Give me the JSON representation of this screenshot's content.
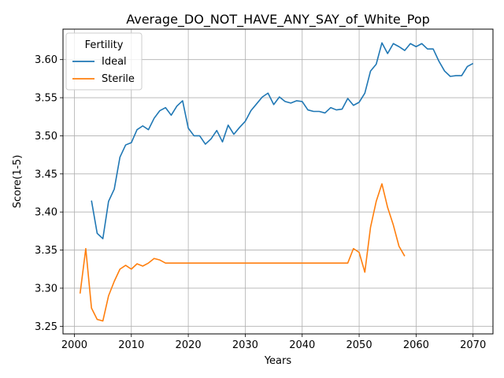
{
  "chart_data": {
    "type": "line",
    "title": "Average_DO_NOT_HAVE_ANY_SAY_of_White_Pop",
    "xlabel": "Years",
    "ylabel": "Score(1-5)",
    "xlim": [
      1998,
      2073.5
    ],
    "ylim": [
      3.24,
      3.64
    ],
    "xticks": [
      2000,
      2010,
      2020,
      2030,
      2040,
      2050,
      2060,
      2070
    ],
    "yticks": [
      3.25,
      3.3,
      3.35,
      3.4,
      3.45,
      3.5,
      3.55,
      3.6
    ],
    "yticklabels": [
      "3.25",
      "3.30",
      "3.35",
      "3.40",
      "3.45",
      "3.50",
      "3.55",
      "3.60"
    ],
    "grid": true,
    "legend": {
      "title": "Fertility",
      "placement": "upper-left"
    },
    "series": [
      {
        "name": "Ideal",
        "color": "#1f77b4",
        "x": [
          2003,
          2004,
          2005,
          2006,
          2007,
          2008,
          2009,
          2010,
          2011,
          2012,
          2013,
          2014,
          2015,
          2016,
          2017,
          2018,
          2019,
          2020,
          2021,
          2022,
          2023,
          2024,
          2025,
          2026,
          2027,
          2028,
          2029,
          2030,
          2031,
          2032,
          2033,
          2034,
          2035,
          2036,
          2037,
          2038,
          2039,
          2040,
          2041,
          2042,
          2043,
          2044,
          2045,
          2046,
          2047,
          2048,
          2049,
          2050,
          2051,
          2052,
          2053,
          2054,
          2055,
          2056,
          2057,
          2058,
          2059,
          2060,
          2061,
          2062,
          2063,
          2064,
          2065,
          2066,
          2067,
          2068,
          2069,
          2070
        ],
        "y": [
          3.415,
          3.372,
          3.365,
          3.414,
          3.43,
          3.472,
          3.488,
          3.491,
          3.508,
          3.513,
          3.508,
          3.523,
          3.533,
          3.537,
          3.527,
          3.539,
          3.546,
          3.51,
          3.5,
          3.5,
          3.489,
          3.496,
          3.507,
          3.492,
          3.514,
          3.502,
          3.511,
          3.519,
          3.533,
          3.542,
          3.551,
          3.556,
          3.541,
          3.551,
          3.545,
          3.543,
          3.546,
          3.545,
          3.534,
          3.532,
          3.532,
          3.53,
          3.537,
          3.534,
          3.535,
          3.549,
          3.54,
          3.544,
          3.556,
          3.585,
          3.594,
          3.622,
          3.608,
          3.621,
          3.617,
          3.612,
          3.621,
          3.617,
          3.621,
          3.614,
          3.614,
          3.598,
          3.585,
          3.578,
          3.579,
          3.579,
          3.591,
          3.595
        ]
      },
      {
        "name": "Sterile",
        "color": "#ff7f0e",
        "x": [
          2001,
          2002,
          2003,
          2004,
          2005,
          2006,
          2007,
          2008,
          2009,
          2010,
          2011,
          2012,
          2013,
          2014,
          2015,
          2016,
          2017,
          2018,
          2019,
          2020,
          2021,
          2022,
          2023,
          2024,
          2025,
          2026,
          2027,
          2028,
          2029,
          2030,
          2031,
          2032,
          2033,
          2034,
          2035,
          2036,
          2037,
          2038,
          2039,
          2040,
          2041,
          2042,
          2043,
          2044,
          2045,
          2046,
          2047,
          2048,
          2049,
          2050,
          2051,
          2052,
          2053,
          2054,
          2055,
          2056,
          2057,
          2058
        ],
        "y": [
          3.293,
          3.352,
          3.274,
          3.259,
          3.257,
          3.29,
          3.309,
          3.325,
          3.33,
          3.325,
          3.332,
          3.329,
          3.333,
          3.339,
          3.337,
          3.333,
          3.333,
          3.333,
          3.333,
          3.333,
          3.333,
          3.333,
          3.333,
          3.333,
          3.333,
          3.333,
          3.333,
          3.333,
          3.333,
          3.333,
          3.333,
          3.333,
          3.333,
          3.333,
          3.333,
          3.333,
          3.333,
          3.333,
          3.333,
          3.333,
          3.333,
          3.333,
          3.333,
          3.333,
          3.333,
          3.333,
          3.333,
          3.333,
          3.352,
          3.347,
          3.321,
          3.38,
          3.414,
          3.437,
          3.406,
          3.383,
          3.355,
          3.342
        ]
      }
    ]
  }
}
